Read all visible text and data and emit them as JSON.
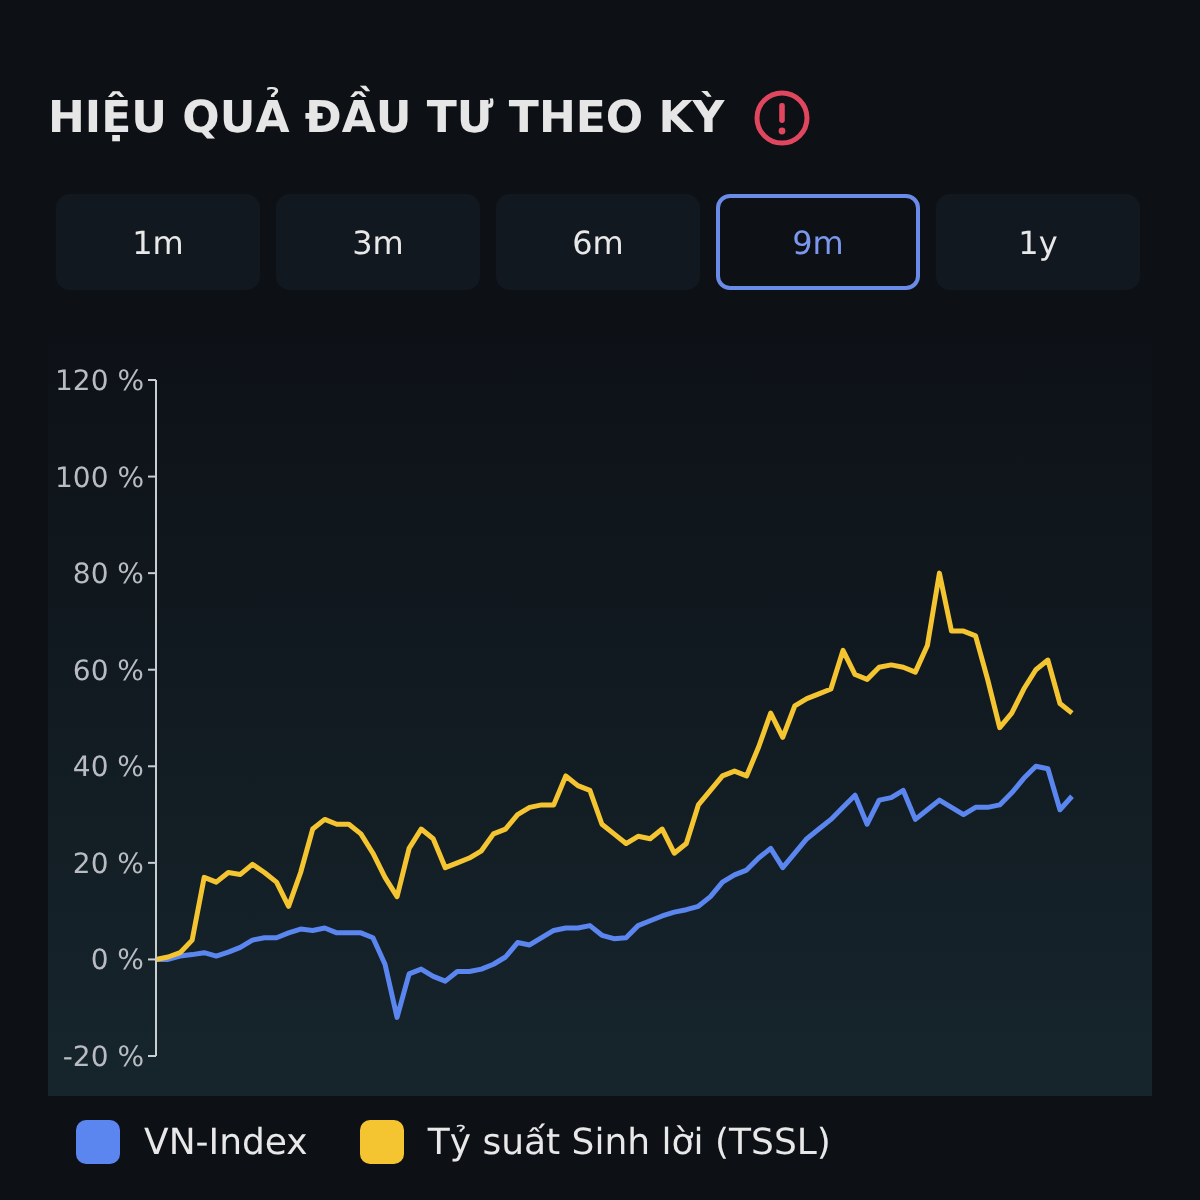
{
  "chart_data": {
    "type": "line",
    "title": "HIỆU QUẢ ĐẦU TƯ THEO KỲ",
    "annotations": [
      "1m",
      "3m",
      "6m",
      "9m",
      "1y"
    ],
    "categories": [
      null,
      null,
      null,
      null,
      null,
      null,
      null,
      null,
      null,
      null,
      null,
      null,
      null,
      null,
      null,
      null,
      null,
      null,
      null,
      null,
      null,
      null,
      null,
      null,
      null,
      null,
      null,
      null,
      null,
      null,
      null,
      null,
      null,
      null,
      null,
      null,
      null,
      null,
      null,
      null,
      null,
      null,
      null,
      null,
      null,
      null,
      null,
      null,
      null,
      null,
      null,
      null,
      null,
      null,
      null,
      null,
      null,
      null,
      null,
      null,
      null,
      null,
      null,
      null,
      null,
      null,
      null,
      null,
      null,
      null,
      null,
      null,
      null,
      null,
      null,
      null,
      null
    ],
    "series": [
      {
        "name": "VN-Index",
        "color": "#5b86f0",
        "values": [
          0,
          0,
          0.7,
          1,
          1.4,
          0.7,
          1.5,
          2.5,
          4,
          4.5,
          4.5,
          5.5,
          6.3,
          6,
          6.5,
          5.5,
          5.5,
          5.5,
          4.5,
          -1,
          -12,
          -3,
          -2,
          -3.5,
          -4.5,
          -2.5,
          -2.5,
          -2,
          -1,
          0.5,
          3.5,
          3,
          4.5,
          6,
          6.5,
          6.5,
          7,
          5,
          4.3,
          4.5,
          7,
          8,
          9,
          9.8,
          10.3,
          11,
          13,
          16,
          17.5,
          18.5,
          21,
          23,
          19,
          22,
          25,
          27,
          29,
          31.5,
          34,
          28,
          33,
          33.5,
          35,
          29,
          31,
          33,
          31.5,
          30,
          31.5,
          31.5,
          32,
          34.5,
          37.5,
          40,
          39.5,
          31,
          33.8
        ]
      },
      {
        "name": "Tỷ suất Sinh lời (TSSL)",
        "color": "#f5c531",
        "values": [
          0,
          0.5,
          1.4,
          4,
          17,
          16,
          18,
          17.6,
          19.7,
          18,
          16,
          11,
          18,
          27,
          29,
          28,
          28,
          26,
          22,
          17,
          13,
          23,
          27,
          25,
          19,
          20,
          21,
          22.5,
          26,
          27,
          30,
          31.5,
          32,
          32,
          38,
          36,
          35,
          28,
          26,
          24,
          25.5,
          25,
          27,
          22,
          24,
          32,
          35,
          38,
          39,
          38,
          44,
          51,
          46,
          52.5,
          54,
          55,
          56,
          64,
          59,
          58,
          60.5,
          61,
          60.5,
          59.5,
          65,
          80,
          68,
          68,
          67,
          58,
          48,
          51,
          56,
          60,
          62,
          53,
          51
        ]
      }
    ],
    "ylim": [
      -20,
      120
    ],
    "yticks": [
      {
        "value": -20,
        "label": "-20 %"
      },
      {
        "value": 0,
        "label": "0 %"
      },
      {
        "value": 20,
        "label": "20 %"
      },
      {
        "value": 40,
        "label": "40 %"
      },
      {
        "value": 60,
        "label": "60 %"
      },
      {
        "value": 80,
        "label": "80 %"
      },
      {
        "value": 100,
        "label": "100 %"
      },
      {
        "value": 120,
        "label": "120 %"
      }
    ],
    "tick_labels": "y",
    "legend": "bottom"
  }
}
